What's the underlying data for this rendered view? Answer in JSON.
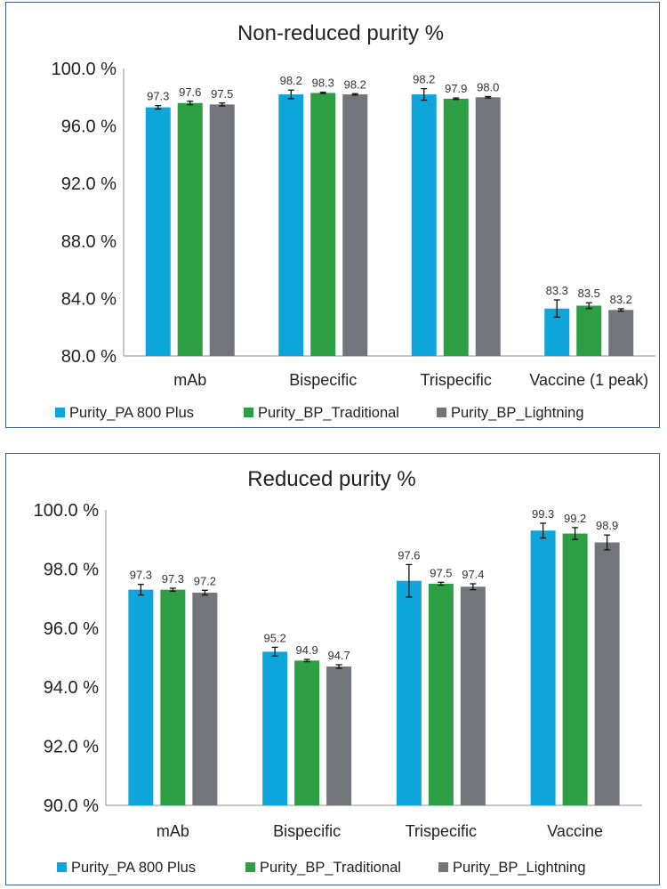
{
  "colors": {
    "s1": "#0EA5DB",
    "s2": "#2E9E45",
    "s3": "#72757B",
    "axis": "#8c8c8c",
    "frame": "#3f5a8c",
    "error_bar": "#111111"
  },
  "chart_data": [
    {
      "type": "bar",
      "title": "Non-reduced purity %",
      "categories": [
        "mAb",
        "Bispecific",
        "Trispecific",
        "Vaccine (1 peak)"
      ],
      "ylim": [
        80,
        100
      ],
      "yticks": [
        80,
        84,
        88,
        92,
        96,
        100
      ],
      "ytick_labels": [
        "80.0 %",
        "84.0 %",
        "88.0 %",
        "92.0 %",
        "96.0 %",
        "100.0 %"
      ],
      "grid": false,
      "legend_position": "bottom",
      "series": [
        {
          "name": "Purity_PA 800 Plus",
          "color": "#0EA5DB",
          "values": [
            97.3,
            98.2,
            98.2,
            83.3
          ],
          "labels": [
            "97.3",
            "98.2",
            "98.2",
            "83.3"
          ],
          "errors": [
            0.12,
            0.3,
            0.4,
            0.6
          ]
        },
        {
          "name": "Purity_BP_Traditional",
          "color": "#2E9E45",
          "values": [
            97.6,
            98.3,
            97.9,
            83.5
          ],
          "labels": [
            "97.6",
            "98.3",
            "97.9",
            "83.5"
          ],
          "errors": [
            0.12,
            0.05,
            0.05,
            0.2
          ]
        },
        {
          "name": "Purity_BP_Lightning",
          "color": "#72757B",
          "values": [
            97.5,
            98.2,
            98.0,
            83.2
          ],
          "labels": [
            "97.5",
            "98.2",
            "98.0",
            "83.2"
          ],
          "errors": [
            0.1,
            0.05,
            0.05,
            0.08
          ]
        }
      ]
    },
    {
      "type": "bar",
      "title": "Reduced purity %",
      "categories": [
        "mAb",
        "Bispecific",
        "Trispecific",
        "Vaccine"
      ],
      "ylim": [
        90,
        100
      ],
      "yticks": [
        90,
        92,
        94,
        96,
        98,
        100
      ],
      "ytick_labels": [
        "90.0 %",
        "92.0 %",
        "94.0 %",
        "96.0 %",
        "98.0 %",
        "100.0 %"
      ],
      "grid": false,
      "legend_position": "bottom",
      "series": [
        {
          "name": "Purity_PA 800 Plus",
          "color": "#0EA5DB",
          "values": [
            97.3,
            95.2,
            97.6,
            99.3
          ],
          "labels": [
            "97.3",
            "95.2",
            "97.6",
            "99.3"
          ],
          "errors": [
            0.18,
            0.15,
            0.55,
            0.25
          ]
        },
        {
          "name": "Purity_BP_Traditional",
          "color": "#2E9E45",
          "values": [
            97.3,
            94.9,
            97.5,
            99.2
          ],
          "labels": [
            "97.3",
            "94.9",
            "97.5",
            "99.2"
          ],
          "errors": [
            0.05,
            0.04,
            0.05,
            0.2
          ]
        },
        {
          "name": "Purity_BP_Lightning",
          "color": "#72757B",
          "values": [
            97.2,
            94.7,
            97.4,
            98.9
          ],
          "labels": [
            "97.2",
            "94.7",
            "97.4",
            "98.9"
          ],
          "errors": [
            0.08,
            0.06,
            0.1,
            0.25
          ]
        }
      ]
    }
  ]
}
